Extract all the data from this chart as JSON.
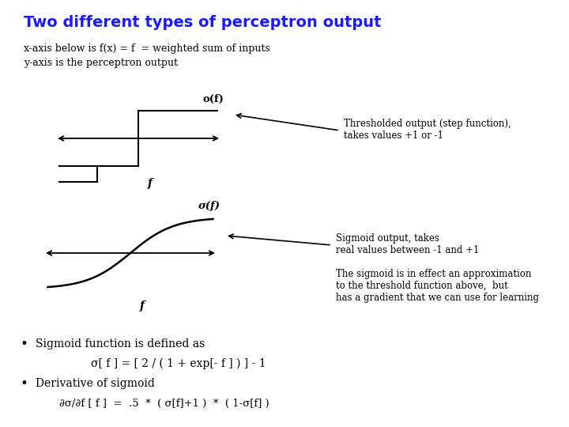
{
  "title": "Two different types of perceptron output",
  "title_color": "#1a1aff",
  "title_fontsize": 14,
  "bg_color": "#ffffff",
  "subtitle1": "x-axis below is f(x) = f  = weighted sum of inputs",
  "subtitle2": "y-axis is the perceptron output",
  "ann_step": "Thresholded output (step function),\ntakes values +1 or -1",
  "ann_sigmoid": "Sigmoid output, takes\nreal values between -1 and +1",
  "ann_approx": "The sigmoid is in effect an approximation\nto the threshold function above,  but\nhas a gradient that we can use for learning",
  "bullet1": "Sigmoid function is defined as",
  "formula1": "σ[ f ] = [ 2 / ( 1 + exp[- f ] ) ] - 1",
  "bullet2": "Derivative of sigmoid",
  "formula2": "∂σ/∂f [ f ]  =  .5  *  ( σ[f]+1 )  *  ( 1-σ[f] )"
}
